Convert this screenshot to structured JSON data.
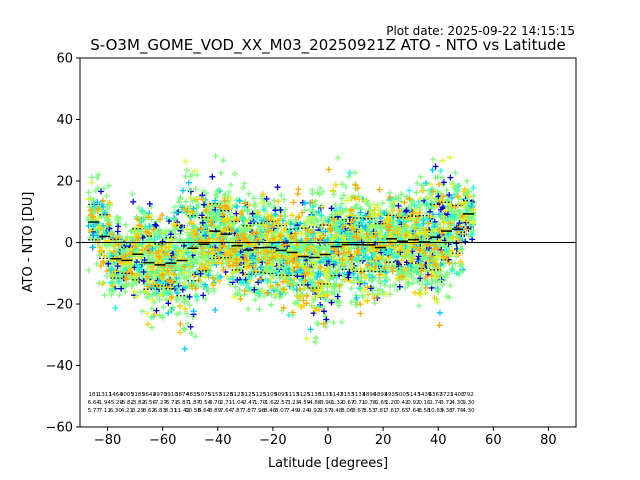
{
  "plot_date": "Plot date: 2025-09-22 14:15:15",
  "chart_data": {
    "type": "scatter",
    "title": "S-O3M_GOME_VOD_XX_M03_20250921Z ATO - NTO vs Latitude",
    "xlabel": "Latitude [degrees]",
    "ylabel": "ATO - NTO [DU]",
    "xlim": [
      -90,
      90
    ],
    "ylim": [
      -60,
      60
    ],
    "xticks": [
      -80,
      -60,
      -40,
      -20,
      0,
      20,
      40,
      60,
      80
    ],
    "yticks": [
      -60,
      -40,
      -20,
      0,
      20,
      40,
      60
    ],
    "grid": false,
    "zero_line": 0,
    "colors": {
      "density_low": "#0000d0",
      "density_mid1": "#00c8ff",
      "density_mid2": "#20ffd8",
      "density_mid3": "#7fff7f",
      "density_mid4": "#d8ff30",
      "density_high": "#ffd000",
      "density_top": "#ffaa00"
    },
    "bins": [
      {
        "lat": -85,
        "mean": 6.64,
        "std": 5.77,
        "n": 181
      },
      {
        "lat": -81,
        "mean": 1.94,
        "std": 7.11,
        "n": 1311
      },
      {
        "lat": -77,
        "mean": -5.29,
        "std": 6.3,
        "n": 1464
      },
      {
        "lat": -73,
        "mean": -5.82,
        "std": 4.21,
        "n": 3005
      },
      {
        "lat": -69,
        "mean": -3.82,
        "std": 8.29,
        "n": 3185
      },
      {
        "lat": -65,
        "mean": -6.56,
        "std": 8.62,
        "n": 3641
      },
      {
        "lat": -61,
        "mean": -7.27,
        "std": 6.83,
        "n": 4970
      },
      {
        "lat": -57,
        "mean": -6.71,
        "std": 8.31,
        "n": 3910
      },
      {
        "lat": -53,
        "mean": -5.87,
        "std": 11.42,
        "n": 3874
      },
      {
        "lat": -49,
        "mean": -1.87,
        "std": 10.58,
        "n": 4835
      },
      {
        "lat": -45,
        "mean": -0.54,
        "std": 8.64,
        "n": 5075
      },
      {
        "lat": -41,
        "mean": 3.7,
        "std": 8.89,
        "n": 5152
      },
      {
        "lat": -37,
        "mean": 2.71,
        "std": 7.64,
        "n": 5128
      },
      {
        "lat": -33,
        "mean": -1.04,
        "std": 7.87,
        "n": 5122
      },
      {
        "lat": -29,
        "mean": -2.47,
        "std": 7.87,
        "n": 5125
      },
      {
        "lat": -25,
        "mean": -1.7,
        "std": 7.98,
        "n": 5125
      },
      {
        "lat": -21,
        "mean": -1.62,
        "std": 8.46,
        "n": 5109
      },
      {
        "lat": -17,
        "mean": -2.57,
        "std": 8.07,
        "n": 5091
      },
      {
        "lat": -13,
        "mean": -3.23,
        "std": 7.49,
        "n": 5113
      },
      {
        "lat": -9,
        "mean": -4.59,
        "std": 9.24,
        "n": 5125
      },
      {
        "lat": -5,
        "mean": -4.88,
        "std": 9.92,
        "n": 5130
      },
      {
        "lat": -1,
        "mean": -3.9,
        "std": 9.57,
        "n": 5131
      },
      {
        "lat": 3,
        "mean": -1.32,
        "std": 9.48,
        "n": 5142
      },
      {
        "lat": 7,
        "mean": -0.67,
        "std": 8.06,
        "n": 5153
      },
      {
        "lat": 11,
        "mean": -0.71,
        "std": 8.67,
        "n": 5133
      },
      {
        "lat": 15,
        "mean": -0.78,
        "std": 8.53,
        "n": 4890
      },
      {
        "lat": 19,
        "mean": -1.65,
        "std": 7.81,
        "n": 4893
      },
      {
        "lat": 23,
        "mean": 1.2,
        "std": 7.61,
        "n": 4935
      },
      {
        "lat": 27,
        "mean": 0.42,
        "std": 7.65,
        "n": 5005
      },
      {
        "lat": 31,
        "mean": 0.92,
        "std": 7.64,
        "n": 5143
      },
      {
        "lat": 35,
        "mean": 0.16,
        "std": 8.58,
        "n": 5439
      },
      {
        "lat": 39,
        "mean": 1.74,
        "std": 10.63,
        "n": 6367
      },
      {
        "lat": 43,
        "mean": 3.72,
        "std": 9.38,
        "n": 3721
      },
      {
        "lat": 47,
        "mean": 4.3,
        "std": 7.76,
        "n": 1408
      },
      {
        "lat": 51,
        "mean": 9.3,
        "std": 4.3,
        "n": 792
      }
    ]
  }
}
